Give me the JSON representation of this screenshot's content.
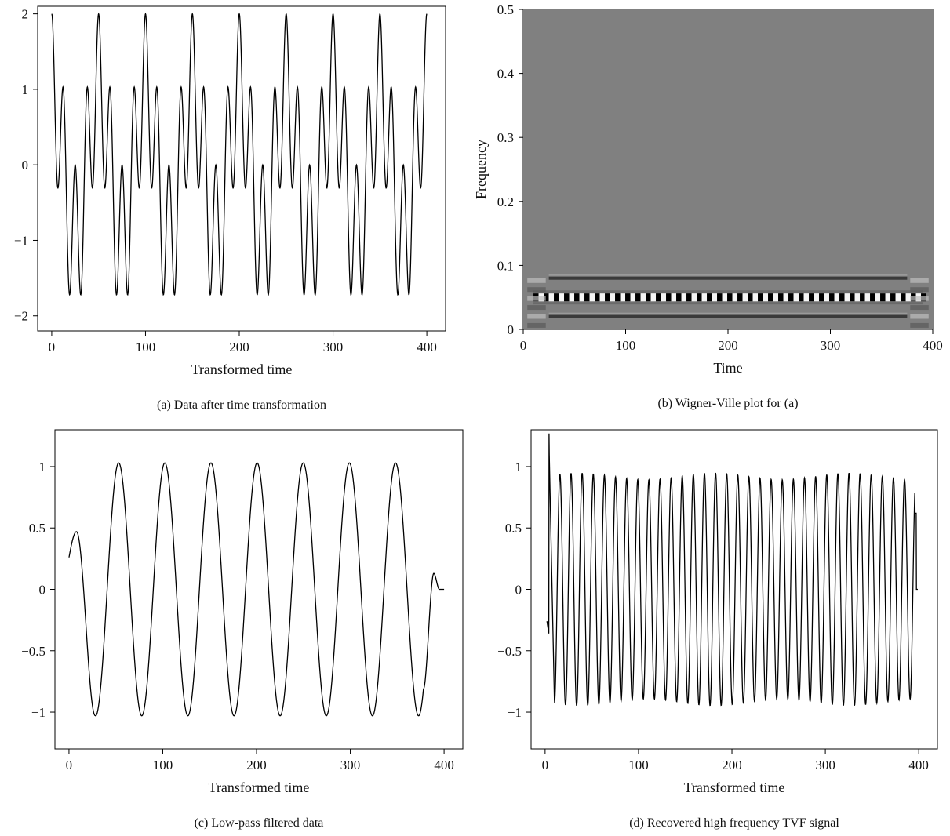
{
  "chart_data": [
    {
      "id": "a",
      "type": "line",
      "caption": "(a)  Data after time transformation",
      "xlabel": "Transformed time",
      "ylabel": "",
      "xlim": [
        -15,
        420
      ],
      "ylim": [
        -2.2,
        2.1
      ],
      "xticks": [
        0,
        100,
        200,
        300,
        400
      ],
      "xtick_labels": [
        "0",
        "100",
        "200",
        "300",
        "400"
      ],
      "yticks": [
        -2,
        -1,
        0,
        1,
        2
      ],
      "ytick_labels": [
        "−2",
        "−1",
        "0",
        "1",
        "2"
      ],
      "series": [
        {
          "description": "sum of two cosines",
          "components": [
            {
              "amplitude": 1,
              "period": 50
            },
            {
              "amplitude": 1,
              "period": 12.5
            }
          ],
          "x_range": [
            0,
            400
          ]
        }
      ]
    },
    {
      "id": "b",
      "type": "heatmap",
      "caption": "(b)  Wigner-Ville plot for (a)",
      "xlabel": "Time",
      "ylabel": "Frequency",
      "xlim": [
        0,
        400
      ],
      "ylim": [
        0,
        0.5
      ],
      "xticks": [
        0,
        100,
        200,
        300,
        400
      ],
      "xtick_labels": [
        "0",
        "100",
        "200",
        "300",
        "400"
      ],
      "yticks": [
        0,
        0.1,
        0.2,
        0.3,
        0.4,
        0.5
      ],
      "ytick_labels": [
        "0",
        "0.1",
        "0.2",
        "0.3",
        "0.4",
        "0.5"
      ],
      "background_color": "#808080",
      "bands": [
        {
          "frequency": 0.05,
          "pattern": "alternating-black-white",
          "time_range": [
            10,
            390
          ]
        },
        {
          "frequency": 0.02,
          "pattern": "dark",
          "time_range": [
            25,
            375
          ]
        },
        {
          "frequency": 0.08,
          "pattern": "dark",
          "time_range": [
            25,
            375
          ]
        }
      ]
    },
    {
      "id": "c",
      "type": "line",
      "caption": "(c)  Low-pass filtered data",
      "xlabel": "Transformed time",
      "ylabel": "",
      "xlim": [
        -15,
        420
      ],
      "ylim": [
        -1.3,
        1.3
      ],
      "xticks": [
        0,
        100,
        200,
        300,
        400
      ],
      "xtick_labels": [
        "0",
        "100",
        "200",
        "300",
        "400"
      ],
      "yticks": [
        -1,
        -0.5,
        0,
        0.5,
        1
      ],
      "ytick_labels": [
        "−1",
        "−0.5",
        "0",
        "0.5",
        "1"
      ],
      "series": [
        {
          "description": "low-pass filtered cosine with edge effects",
          "components": [
            {
              "amplitude": 1.03,
              "period": 49.2,
              "phase_peak_x": 53
            }
          ],
          "start_value": 0.26,
          "first_peak": [
            8,
            0.47
          ],
          "end_bump": [
            389,
            0.13
          ],
          "end_value": 0,
          "x_range": [
            0,
            400
          ]
        }
      ]
    },
    {
      "id": "d",
      "type": "line",
      "caption": "(d)  Recovered high frequency TVF signal",
      "xlabel": "Transformed time",
      "ylabel": "",
      "xlim": [
        -15,
        420
      ],
      "ylim": [
        -1.3,
        1.3
      ],
      "xticks": [
        0,
        100,
        200,
        300,
        400
      ],
      "xtick_labels": [
        "0",
        "100",
        "200",
        "300",
        "400"
      ],
      "yticks": [
        -1,
        -0.5,
        0,
        0.5,
        1
      ],
      "ytick_labels": [
        "−1",
        "−0.5",
        "0",
        "0.5",
        "1"
      ],
      "series": [
        {
          "description": "high-frequency oscillation recovered",
          "components": [
            {
              "amplitude": 0.92,
              "period": 11.9
            }
          ],
          "start_value": -0.26,
          "spike": [
            4,
            1.27
          ],
          "end_value": 0.62,
          "x_range": [
            2,
            399
          ]
        }
      ]
    }
  ]
}
